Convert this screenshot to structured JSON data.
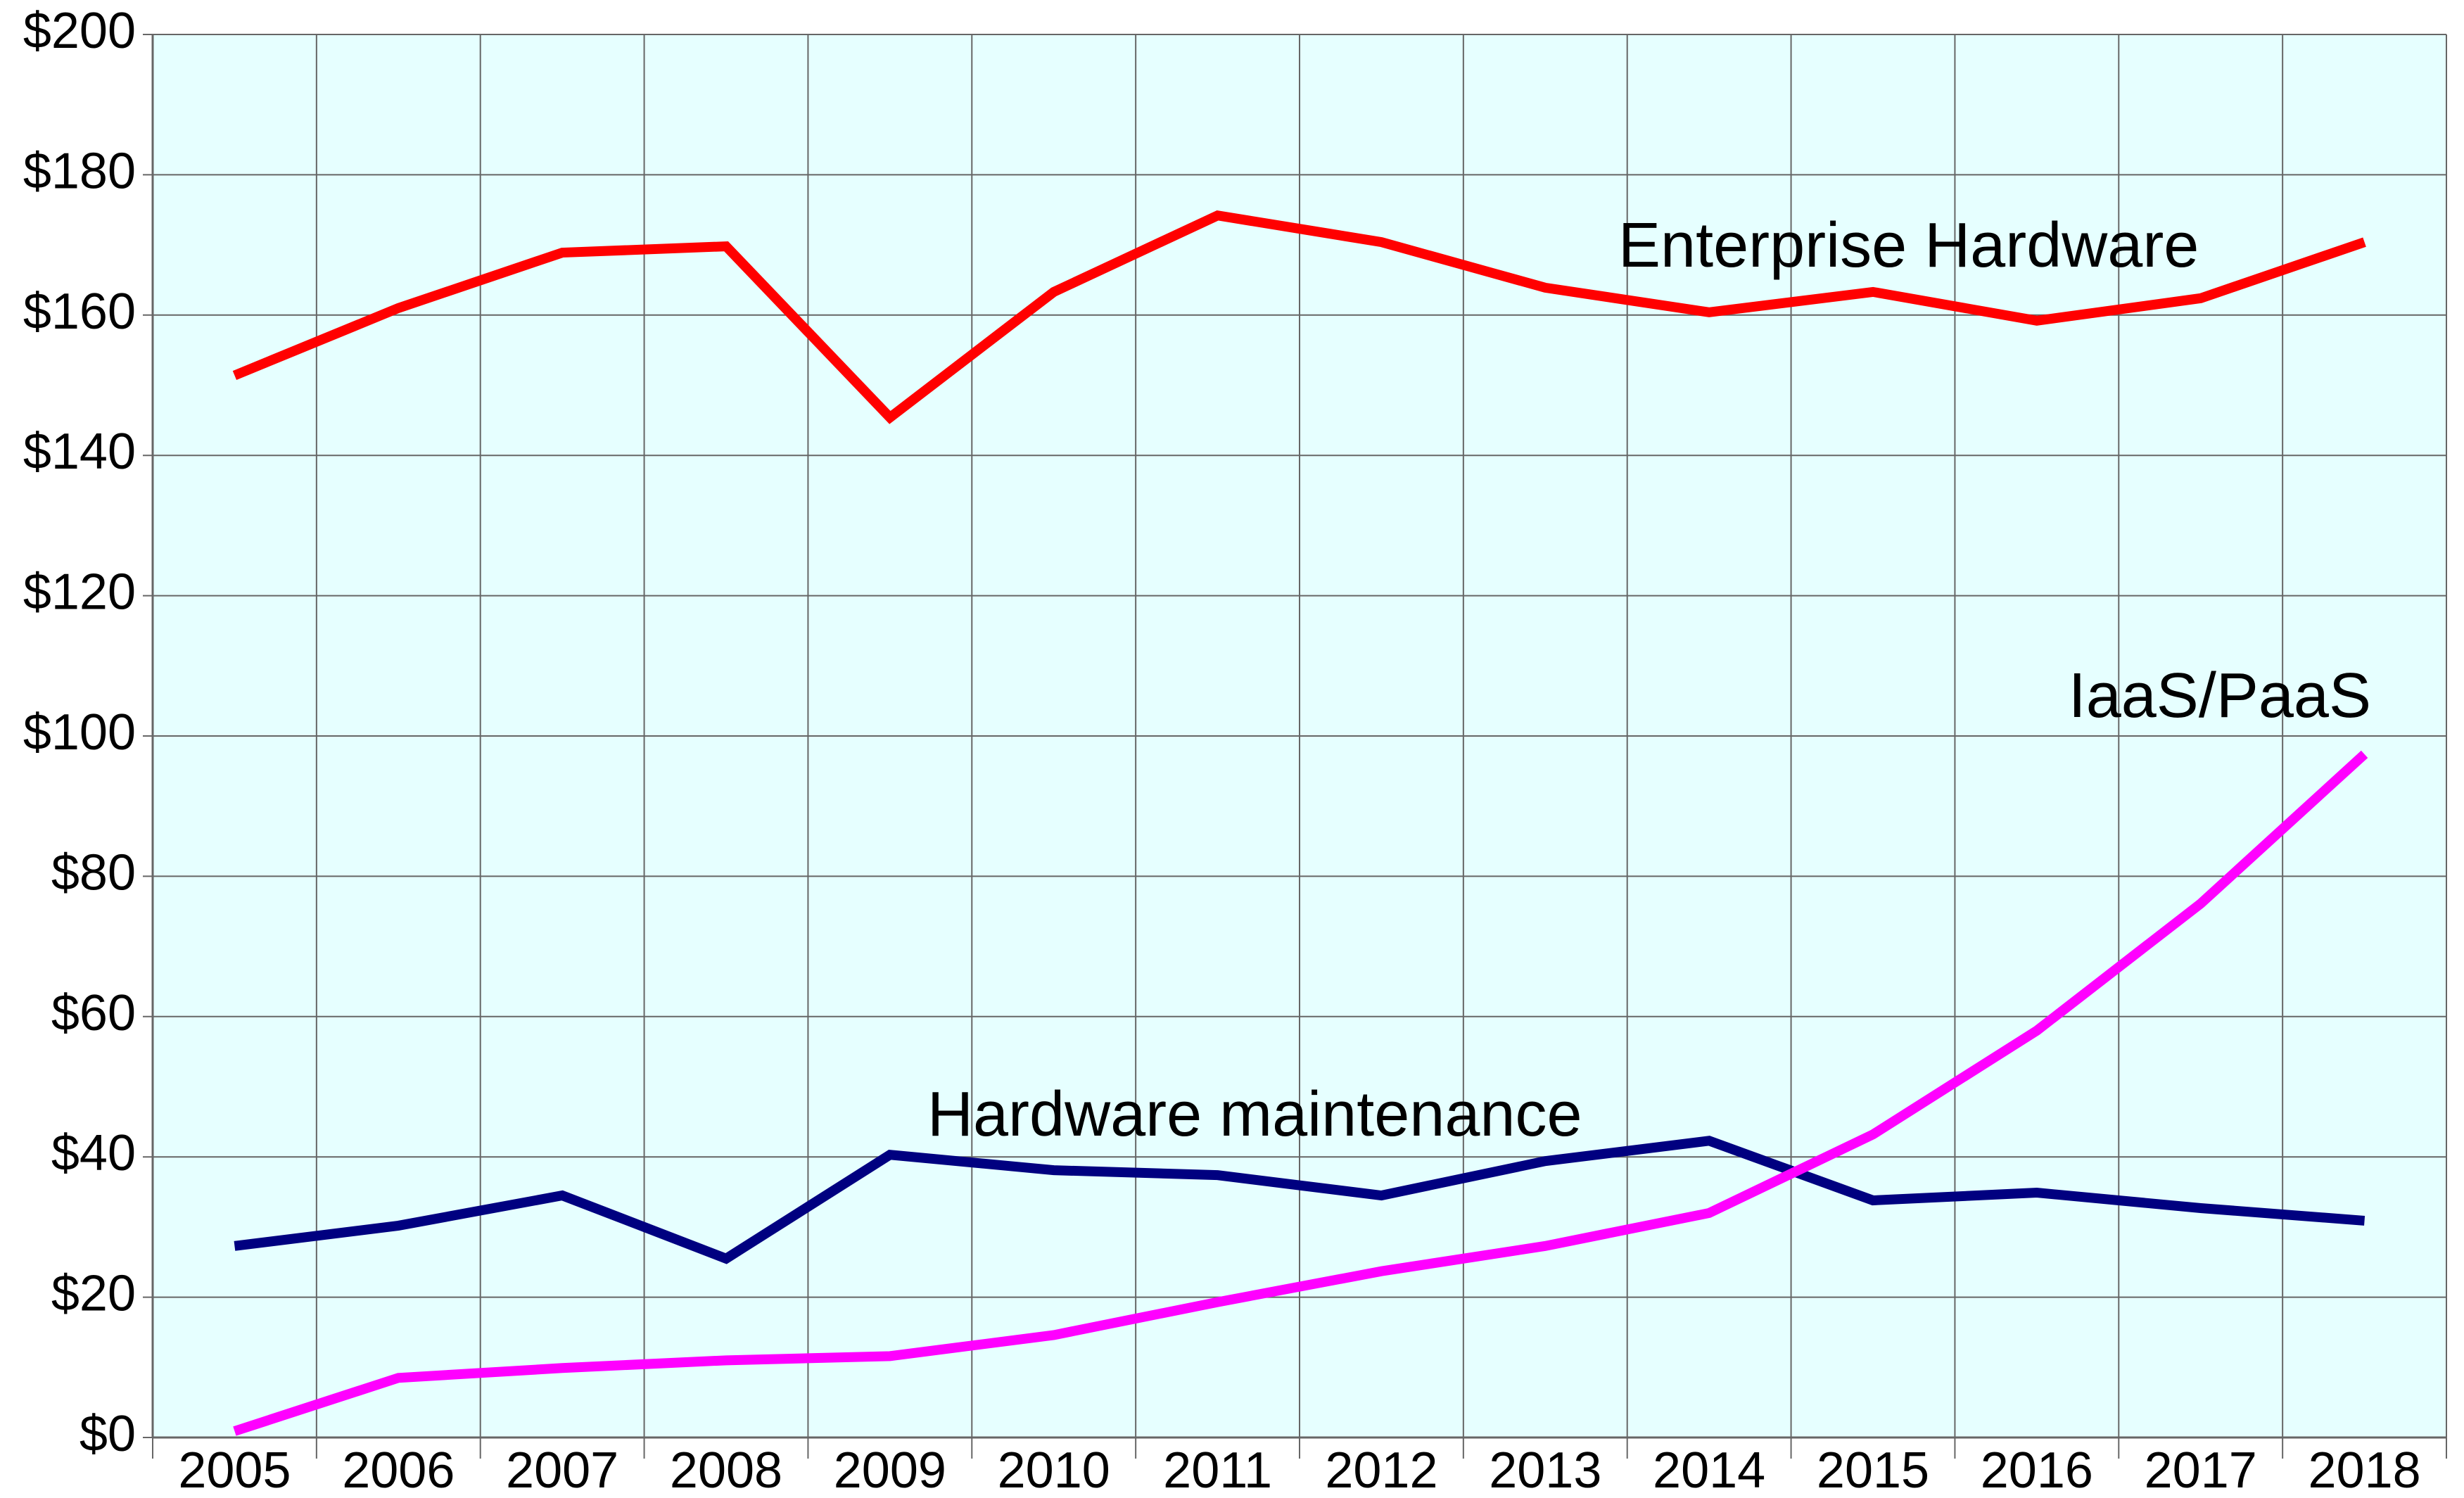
{
  "chart_data": {
    "type": "line",
    "categories": [
      "2005",
      "2006",
      "2007",
      "2008",
      "2009",
      "2010",
      "2011",
      "2012",
      "2013",
      "2014",
      "2015",
      "2016",
      "2017",
      "2018"
    ],
    "series": [
      {
        "name": "Enterprise Hardware",
        "color": "#ff0000",
        "values": [
          151.4,
          161,
          168.9,
          169.8,
          145.4,
          163.3,
          174.2,
          170.4,
          163.9,
          160.4,
          163.3,
          159.2,
          162.4,
          170.4
        ]
      },
      {
        "name": "Hardware maintenance",
        "color": "#000080",
        "values": [
          27.3,
          30.2,
          34.5,
          25.5,
          40.3,
          38.1,
          37.4,
          34.5,
          39.4,
          42.3,
          33.8,
          34.9,
          32.7,
          30.9
        ]
      },
      {
        "name": "IaaS/PaaS",
        "color": "#ff00ff",
        "values": [
          0.9,
          8.5,
          9.9,
          11,
          11.6,
          14.6,
          19.3,
          23.7,
          27.3,
          32,
          43.2,
          58,
          76.1,
          97.4
        ]
      }
    ],
    "ylim": [
      0,
      200
    ],
    "yticks": [
      {
        "value": 0,
        "label": "$0"
      },
      {
        "value": 20,
        "label": "$20"
      },
      {
        "value": 40,
        "label": "$40"
      },
      {
        "value": 60,
        "label": "$60"
      },
      {
        "value": 80,
        "label": "$80"
      },
      {
        "value": 100,
        "label": "$100"
      },
      {
        "value": 120,
        "label": "$120"
      },
      {
        "value": 140,
        "label": "$140"
      },
      {
        "value": 160,
        "label": "$160"
      },
      {
        "value": 180,
        "label": "$180"
      },
      {
        "value": 200,
        "label": "$200"
      }
    ],
    "grid": true
  }
}
